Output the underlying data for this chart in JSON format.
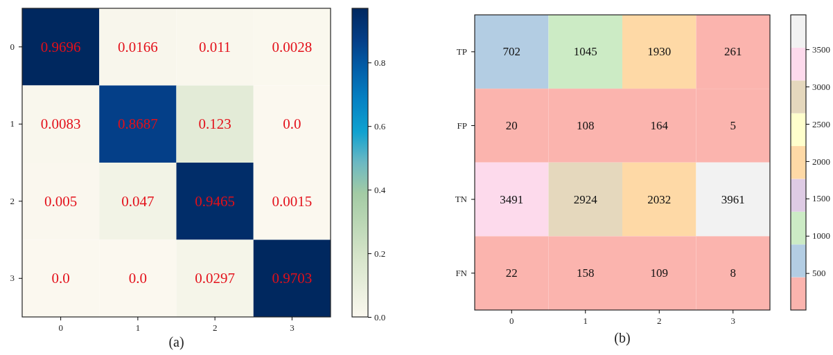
{
  "chart_data": [
    {
      "type": "heatmap",
      "categories": [
        "0",
        "1",
        "2",
        "3"
      ],
      "y_categories": [
        "0",
        "1",
        "2",
        "3"
      ],
      "cells": [
        [
          0.9696,
          0.0166,
          0.011,
          0.0028
        ],
        [
          0.0083,
          0.8687,
          0.123,
          0
        ],
        [
          0.005,
          0.047,
          0.9465,
          0.0015
        ],
        [
          0,
          0,
          0.0297,
          0.9703
        ]
      ],
      "cell_labels": [
        [
          "0.9696",
          "0.0166",
          "0.011",
          "0.0028"
        ],
        [
          "0.0083",
          "0.8687",
          "0.123",
          "0.0"
        ],
        [
          "0.005",
          "0.047",
          "0.9465",
          "0.0015"
        ],
        [
          "0.0",
          "0.0",
          "0.0297",
          "0.9703"
        ]
      ],
      "clim": [
        0,
        0.9703
      ],
      "cticks": [
        {
          "value": 0,
          "label": "0.0"
        },
        {
          "value": 0.2,
          "label": "0.2"
        },
        {
          "value": 0.4,
          "label": "0.4"
        },
        {
          "value": 0.6,
          "label": "0.6"
        },
        {
          "value": 0.8,
          "label": "0.8"
        }
      ],
      "annotations": [
        "(a)"
      ]
    },
    {
      "type": "heatmap",
      "categories": [
        "0",
        "1",
        "2",
        "3"
      ],
      "y_categories": [
        "TP",
        "FP",
        "TN",
        "FN"
      ],
      "cells": [
        [
          702,
          1045,
          1930,
          261
        ],
        [
          20,
          108,
          164,
          5
        ],
        [
          3491,
          2924,
          2032,
          3961
        ],
        [
          22,
          158,
          109,
          8
        ]
      ],
      "data_labels": true,
      "clim": [
        5,
        3961
      ],
      "cticks": [
        500,
        1000,
        1500,
        2000,
        2500,
        3000,
        3500
      ],
      "annotations": [
        "(b)"
      ]
    }
  ]
}
